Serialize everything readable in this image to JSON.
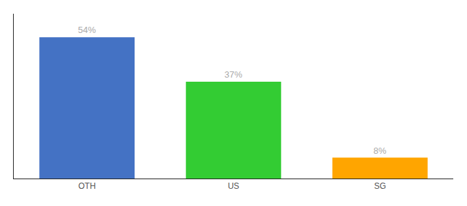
{
  "chart_data": {
    "type": "bar",
    "categories": [
      "OTH",
      "US",
      "SG"
    ],
    "values": [
      54,
      37,
      8
    ],
    "value_labels": [
      "54%",
      "37%",
      "8%"
    ],
    "colors": [
      "#4472C4",
      "#33CC33",
      "#FFA500"
    ],
    "ylim": [
      0,
      63
    ],
    "grid": false,
    "data_labels": true,
    "tick_labels": "x"
  }
}
